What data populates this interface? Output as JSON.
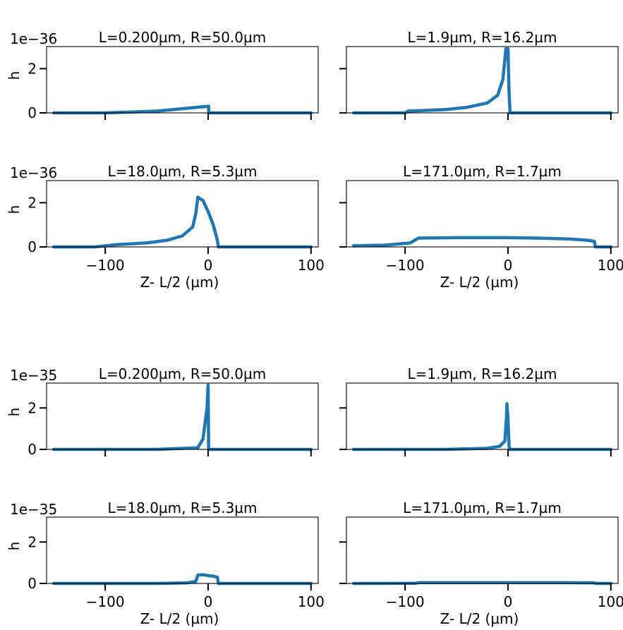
{
  "chart_data": {
    "type": "line",
    "x_ticks": [
      -100,
      0,
      100
    ],
    "xlim": [
      -157,
      107
    ],
    "xlabel": "Z- L/2 (µm)",
    "ylabel": "h",
    "y_ticks": [
      0,
      2
    ],
    "color": "#1f77b4",
    "grid": false,
    "groups": [
      {
        "exponent_label": "1e−36",
        "ylim": [
          0,
          3.0
        ],
        "panels": [
          {
            "title": "L=0.200µm, R=50.0µm",
            "points": [
              [
                -150,
                0
              ],
              [
                -100,
                0
              ],
              [
                -50,
                0.08
              ],
              [
                0,
                0.3
              ],
              [
                0.5,
                0.3
              ],
              [
                0.6,
                0
              ],
              [
                100,
                0
              ]
            ]
          },
          {
            "title": "L=1.9µm, R=16.2µm",
            "points": [
              [
                -150,
                0
              ],
              [
                -100,
                0
              ],
              [
                -97,
                0.08
              ],
              [
                -60,
                0.15
              ],
              [
                -40,
                0.25
              ],
              [
                -20,
                0.45
              ],
              [
                -10,
                0.8
              ],
              [
                -5,
                1.5
              ],
              [
                -2,
                2.9
              ],
              [
                0,
                2.9
              ],
              [
                1,
                1.0
              ],
              [
                2,
                0
              ],
              [
                100,
                0
              ]
            ]
          },
          {
            "title": "L=18.0µm, R=5.3µm",
            "points": [
              [
                -150,
                0
              ],
              [
                -110,
                0
              ],
              [
                -100,
                0.05
              ],
              [
                -90,
                0.1
              ],
              [
                -60,
                0.18
              ],
              [
                -40,
                0.3
              ],
              [
                -25,
                0.5
              ],
              [
                -15,
                0.9
              ],
              [
                -12,
                1.5
              ],
              [
                -10,
                2.25
              ],
              [
                -5,
                2.1
              ],
              [
                0,
                1.6
              ],
              [
                5,
                1.0
              ],
              [
                9,
                0.3
              ],
              [
                10,
                0
              ],
              [
                100,
                0
              ]
            ]
          },
          {
            "title": "L=171.0µm, R=1.7µm",
            "points": [
              [
                -150,
                0.05
              ],
              [
                -120,
                0.08
              ],
              [
                -95,
                0.18
              ],
              [
                -87,
                0.4
              ],
              [
                -50,
                0.42
              ],
              [
                0,
                0.42
              ],
              [
                30,
                0.4
              ],
              [
                60,
                0.36
              ],
              [
                78,
                0.3
              ],
              [
                84,
                0.25
              ],
              [
                85,
                0
              ],
              [
                100,
                0
              ]
            ]
          }
        ]
      },
      {
        "exponent_label": "1e−35",
        "ylim": [
          0,
          3.2
        ],
        "panels": [
          {
            "title": "L=0.200µm, R=50.0µm",
            "points": [
              [
                -150,
                0
              ],
              [
                -50,
                0
              ],
              [
                -10,
                0.08
              ],
              [
                -5,
                0.5
              ],
              [
                -1,
                2.0
              ],
              [
                0,
                3.1
              ],
              [
                0.5,
                0
              ],
              [
                100,
                0
              ]
            ]
          },
          {
            "title": "L=1.9µm, R=16.2µm",
            "points": [
              [
                -150,
                0
              ],
              [
                -60,
                0
              ],
              [
                -20,
                0.05
              ],
              [
                -8,
                0.15
              ],
              [
                -3,
                0.4
              ],
              [
                -1.5,
                1.5
              ],
              [
                -1,
                2.2
              ],
              [
                0,
                1.5
              ],
              [
                1,
                0.2
              ],
              [
                1.5,
                0
              ],
              [
                100,
                0
              ]
            ]
          },
          {
            "title": "L=18.0µm, R=5.3µm",
            "points": [
              [
                -150,
                0
              ],
              [
                -50,
                0
              ],
              [
                -20,
                0.03
              ],
              [
                -12,
                0.1
              ],
              [
                -10,
                0.4
              ],
              [
                -5,
                0.42
              ],
              [
                0,
                0.38
              ],
              [
                5,
                0.35
              ],
              [
                9,
                0.3
              ],
              [
                10,
                0
              ],
              [
                100,
                0
              ]
            ]
          },
          {
            "title": "L=171.0µm, R=1.7µm",
            "points": [
              [
                -150,
                0
              ],
              [
                -90,
                0.01
              ],
              [
                -86,
                0.04
              ],
              [
                0,
                0.04
              ],
              [
                50,
                0.04
              ],
              [
                84,
                0.03
              ],
              [
                85,
                0
              ],
              [
                100,
                0
              ]
            ]
          }
        ]
      }
    ]
  }
}
